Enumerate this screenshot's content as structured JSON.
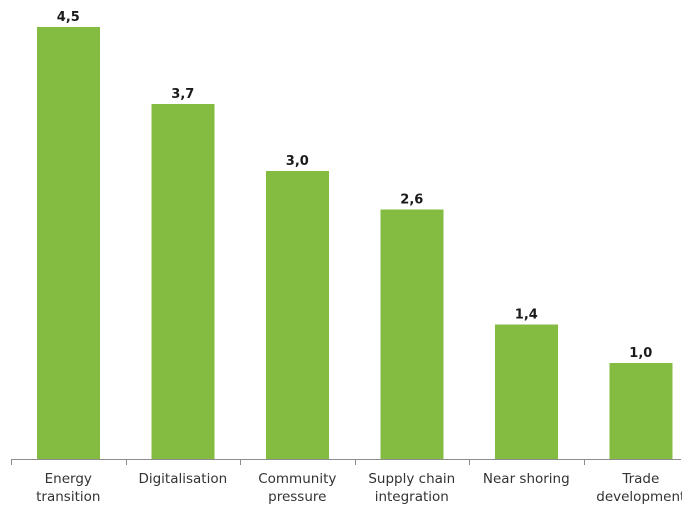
{
  "chart_data": {
    "type": "bar",
    "title": "",
    "xlabel": "",
    "ylabel": "",
    "categories": [
      [
        "Energy",
        "transition"
      ],
      [
        "Digitalisation"
      ],
      [
        "Community",
        "pressure"
      ],
      [
        "Supply chain",
        "integration"
      ],
      [
        "Near shoring"
      ],
      [
        "Trade",
        "development"
      ]
    ],
    "values": [
      4.5,
      3.7,
      3.0,
      2.6,
      1.4,
      1.0
    ],
    "value_labels": [
      "4,5",
      "3,7",
      "3,0",
      "2,6",
      "1,4",
      "1,0"
    ],
    "ylim": [
      0,
      4.5
    ],
    "grid": false,
    "legend": "none",
    "colors": {
      "bar": "#84BB41",
      "axis": "#8C8C8C"
    }
  }
}
